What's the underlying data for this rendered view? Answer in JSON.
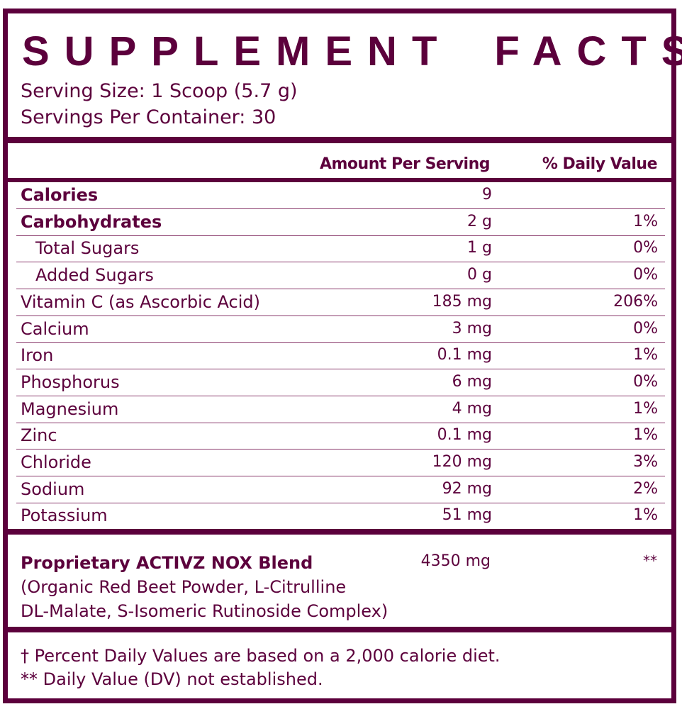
{
  "title_words": [
    "SUPPLEMENT",
    "FACTS"
  ],
  "serving_size": "Serving Size: 1 Scoop (5.7 g)",
  "servings_per_container": "Servings Per Container: 30",
  "headers": {
    "amount": "Amount Per Serving",
    "dv": "% Daily Value"
  },
  "rows": [
    {
      "name": "Calories",
      "amount": "9",
      "dv": "",
      "bold": true
    },
    {
      "name": "Carbohydrates",
      "amount": "2 g",
      "dv": "1%",
      "bold": true
    },
    {
      "name": "Total Sugars",
      "amount": "1 g",
      "dv": "0%",
      "indent": true
    },
    {
      "name": "Added Sugars",
      "amount": "0 g",
      "dv": "0%",
      "indent": true
    },
    {
      "name": "Vitamin C (as Ascorbic Acid)",
      "amount": "185 mg",
      "dv": "206%"
    },
    {
      "name": "Calcium",
      "amount": "3 mg",
      "dv": "0%"
    },
    {
      "name": "Iron",
      "amount": "0.1 mg",
      "dv": "1%"
    },
    {
      "name": "Phosphorus",
      "amount": "6 mg",
      "dv": "0%"
    },
    {
      "name": "Magnesium",
      "amount": "4 mg",
      "dv": "1%"
    },
    {
      "name": "Zinc",
      "amount": "0.1 mg",
      "dv": "1%"
    },
    {
      "name": "Chloride",
      "amount": "120 mg",
      "dv": "3%"
    },
    {
      "name": "Sodium",
      "amount": "92 mg",
      "dv": "2%"
    },
    {
      "name": "Potassium",
      "amount": "51 mg",
      "dv": "1%"
    }
  ],
  "blend": {
    "name": "Proprietary ACTIVZ NOX Blend",
    "amount": "4350 mg",
    "dv": "**",
    "ingredients_line1": "(Organic Red Beet Powder, L-Citrulline",
    "ingredients_line2": "DL-Malate, S-Isomeric Rutinoside Complex)"
  },
  "footnotes": [
    "† Percent Daily Values are based on a 2,000 calorie diet.",
    "** Daily Value (DV) not established."
  ],
  "colors": {
    "brand": "#5c003c"
  }
}
